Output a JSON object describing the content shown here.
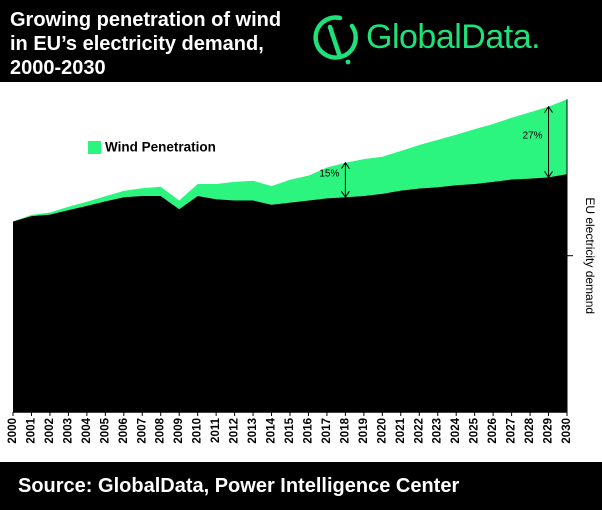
{
  "header": {
    "title_lines": [
      "Growing penetration of wind",
      "in EU’s electricity demand,",
      "2000-2030"
    ],
    "brand": "GlobalData.",
    "brand_color": "#1de27a"
  },
  "footer": {
    "source": "Source:  GlobalData, Power Intelligence Center"
  },
  "chart_data": {
    "type": "area",
    "title": "Growing penetration of wind in EU’s electricity demand, 2000-2030",
    "x": [
      2000,
      2001,
      2002,
      2003,
      2004,
      2005,
      2006,
      2007,
      2008,
      2009,
      2010,
      2011,
      2012,
      2013,
      2014,
      2015,
      2016,
      2017,
      2018,
      2019,
      2020,
      2021,
      2022,
      2023,
      2024,
      2025,
      2026,
      2027,
      2028,
      2029,
      2030
    ],
    "series": [
      {
        "name": "EU electricity demand",
        "color": "#000000",
        "values": [
          63.5,
          65.3,
          65.8,
          67.3,
          68.7,
          70.2,
          71.6,
          72.0,
          72.0,
          67.6,
          72.0,
          70.9,
          70.5,
          70.5,
          69.1,
          69.8,
          70.5,
          71.2,
          71.6,
          72.0,
          72.7,
          73.8,
          74.5,
          74.9,
          75.6,
          76.0,
          76.7,
          77.5,
          77.8,
          78.2,
          79.3
        ]
      },
      {
        "name": "Wind Penetration",
        "color": "#2bf57f",
        "values": [
          0.0,
          0.4,
          0.7,
          1.1,
          1.4,
          1.7,
          2.1,
          2.6,
          3.1,
          2.9,
          4.0,
          5.1,
          6.2,
          6.6,
          6.2,
          7.6,
          8.3,
          10.3,
          11.5,
          12.3,
          12.4,
          13.2,
          14.5,
          15.8,
          16.8,
          18.3,
          19.3,
          20.6,
          22.1,
          23.6,
          24.9
        ]
      }
    ],
    "ylabel": "EU electricity demand",
    "ylim": [
      0,
      110
    ],
    "stacked": true,
    "legend": {
      "position": "top-left",
      "entries": [
        "Wind Penetration"
      ]
    },
    "annotations": [
      {
        "text": "15%",
        "x": 2018,
        "from": 71.6,
        "to": 83.1
      },
      {
        "text": "27%",
        "x": 2029,
        "from": 78.2,
        "to": 101.8
      }
    ],
    "grid": false
  }
}
